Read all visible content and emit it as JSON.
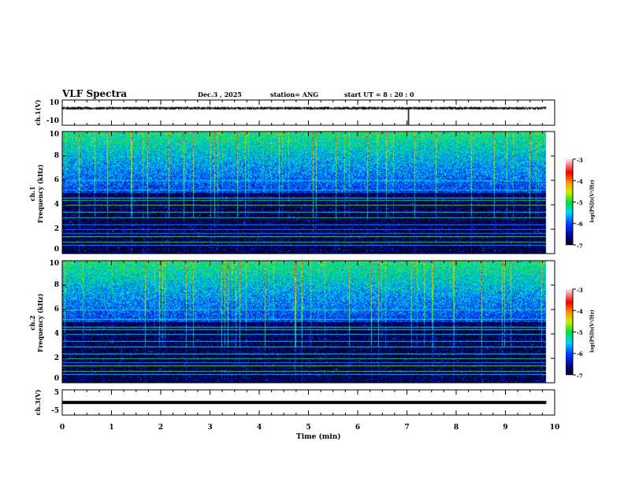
{
  "header": {
    "title": "VLF Spectra",
    "date": "Dec.3  , 2025",
    "station": "station= ANG",
    "start": "start  UT =   8  : 20 : 0"
  },
  "chart_data": [
    {
      "type": "line",
      "name": "ch1",
      "ylabel": "ch.1(V)",
      "ylim": [
        -10,
        10
      ],
      "yticks": [
        "10",
        "-10"
      ],
      "xlim": [
        0,
        10
      ],
      "baseline": 3.5,
      "noise_amp": 1.2,
      "data_end_min": 9.83
    },
    {
      "type": "heatmap",
      "name": "ch1-spectrogram",
      "ylabel": "ch.1 Frequency (kHz)",
      "ylabel1": "ch.1",
      "ylabel2": "Frequency  (kHz)",
      "ylim": [
        0,
        10
      ],
      "yticks": [
        "0",
        "2",
        "4",
        "6",
        "8",
        "10"
      ],
      "xlim": [
        0,
        10
      ],
      "colorbar": {
        "label": "log(PSD)(V²/Hz)",
        "range": [
          -7,
          -3
        ],
        "ticks": [
          "-3",
          "-4",
          "-5",
          "-6",
          "-7"
        ]
      },
      "data_end_min": 9.83
    },
    {
      "type": "heatmap",
      "name": "ch2-spectrogram",
      "ylabel": "ch.2 Frequency (kHz)",
      "ylabel1": "ch.2",
      "ylabel2": "Frequency  (kHz)",
      "ylim": [
        0,
        10
      ],
      "yticks": [
        "0",
        "2",
        "4",
        "6",
        "8",
        "10"
      ],
      "xlim": [
        0,
        10
      ],
      "colorbar": {
        "label": "log(PSD)(V²/Hz)",
        "range": [
          -7,
          -3
        ],
        "ticks": [
          "-3",
          "-4",
          "-5",
          "-6",
          "-7"
        ]
      },
      "data_end_min": 9.83
    },
    {
      "type": "line",
      "name": "ch3",
      "ylabel": "ch.3(V)",
      "ylim": [
        -5,
        5
      ],
      "yticks": [
        "5",
        "-5"
      ],
      "xlim": [
        0,
        10
      ],
      "baseline": 0,
      "noise_amp": 0,
      "data_end_min": 9.83
    }
  ],
  "xaxis": {
    "label": "Time  (min)",
    "ticks": [
      "0",
      "1",
      "2",
      "3",
      "4",
      "5",
      "6",
      "7",
      "8",
      "9",
      "10"
    ]
  }
}
